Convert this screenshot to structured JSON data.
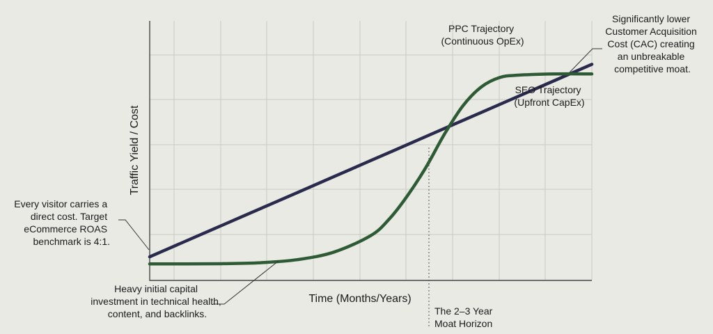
{
  "chart_data": {
    "type": "line",
    "xlabel": "Time (Months/Years)",
    "ylabel": "Traffic Yield / Cost",
    "series": [
      {
        "name": "PPC Trajectory (Continuous OpEx)",
        "color": "#2a2a4d",
        "x": [
          0,
          0.5,
          1.0,
          1.5,
          2.0,
          2.5,
          3.0,
          3.5,
          4.0,
          4.5,
          5.0,
          5.5,
          6.0
        ],
        "y": [
          0.0,
          0.068,
          0.136,
          0.204,
          0.272,
          0.34,
          0.408,
          0.476,
          0.544,
          0.612,
          0.68,
          0.748,
          0.816
        ]
      },
      {
        "name": "SEO Trajectory (Upfront CapEx)",
        "color": "#2f5a36",
        "x": [
          0,
          0.5,
          1.0,
          1.5,
          2.0,
          2.5,
          3.0,
          3.25,
          3.5,
          3.75,
          4.0,
          4.25,
          4.5,
          4.75,
          5.0,
          5.5,
          6.0
        ],
        "y": [
          -0.03,
          -0.03,
          -0.029,
          -0.025,
          -0.012,
          0.02,
          0.09,
          0.16,
          0.26,
          0.38,
          0.52,
          0.64,
          0.72,
          0.76,
          0.77,
          0.775,
          0.775
        ]
      }
    ],
    "grid": true
  },
  "labels": {
    "ppc_line1": "PPC Trajectory",
    "ppc_line2": "(Continuous OpEx)",
    "seo_line1": "SEO Trajectory",
    "seo_line2": "(Upfront CapEx)",
    "cac": [
      "Significantly lower",
      "Customer Acquisition",
      "Cost (CAC) creating",
      "an unbreakable",
      "competitive moat."
    ],
    "visitor": [
      "Every visitor carries a",
      "direct cost. Target",
      "eCommerce ROAS",
      "benchmark is 4:1."
    ],
    "investment": [
      "Heavy initial capital",
      "investment in technical health,",
      "content, and backlinks."
    ],
    "horizon": [
      "The 2–3 Year",
      "Moat Horizon"
    ]
  }
}
